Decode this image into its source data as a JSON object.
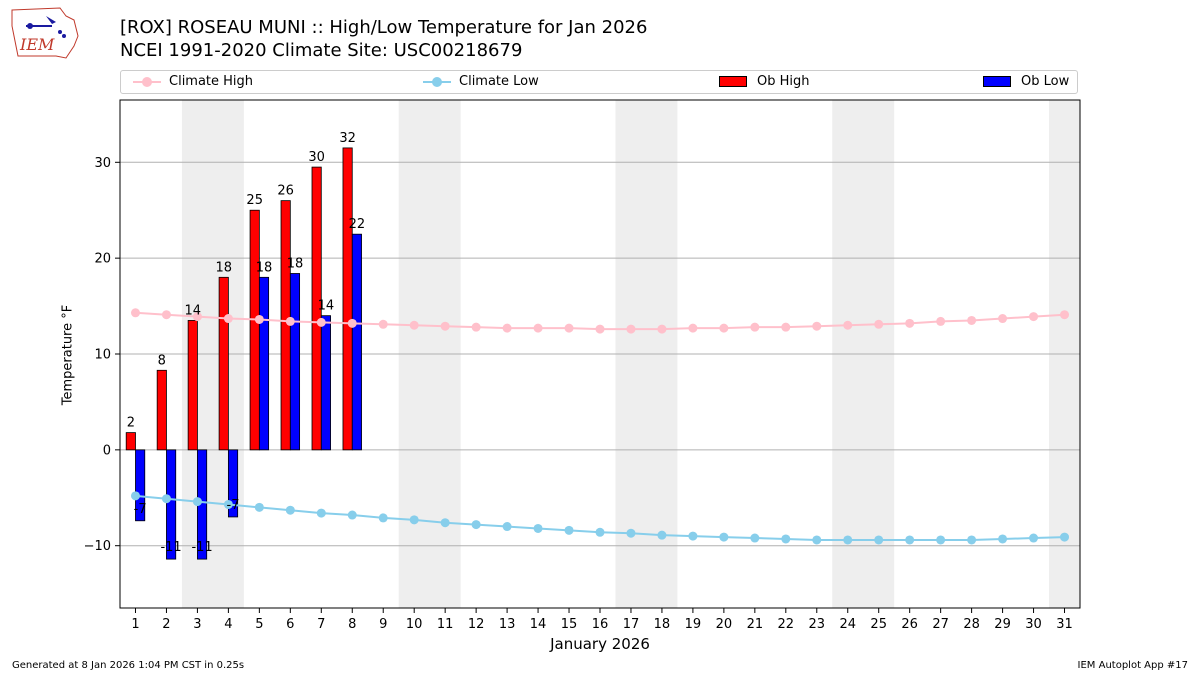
{
  "header": {
    "title_line1": "[ROX] ROSEAU MUNI :: High/Low Temperature for Jan 2026",
    "title_line2": "NCEI 1991-2020 Climate Site: USC00218679",
    "logo_text": "IEM"
  },
  "footer": {
    "generated": "Generated at 8 Jan 2026 1:04 PM CST in 0.25s",
    "app": "IEM Autoplot App #17"
  },
  "colors": {
    "climate_high": "#ffc0cb",
    "climate_low": "#87ceeb",
    "ob_high": "#ff0000",
    "ob_low": "#0000ff",
    "weekend_shade": "#eeeeee",
    "grid": "#b0b0b0"
  },
  "chart_data": {
    "type": "bar",
    "title": "[ROX] ROSEAU MUNI :: High/Low Temperature for Jan 2026",
    "xlabel": "January 2026",
    "ylabel": "Temperature °F",
    "xlim": [
      0.5,
      31.5
    ],
    "ylim": [
      -16.5,
      36.5
    ],
    "yticks": [
      -10,
      0,
      10,
      20,
      30
    ],
    "days": [
      1,
      2,
      3,
      4,
      5,
      6,
      7,
      8,
      9,
      10,
      11,
      12,
      13,
      14,
      15,
      16,
      17,
      18,
      19,
      20,
      21,
      22,
      23,
      24,
      25,
      26,
      27,
      28,
      29,
      30,
      31
    ],
    "weekend_spans": [
      [
        2.5,
        4.5
      ],
      [
        9.5,
        11.5
      ],
      [
        16.5,
        18.5
      ],
      [
        23.5,
        25.5
      ],
      [
        30.5,
        31.5
      ]
    ],
    "legend": [
      "Climate High",
      "Climate Low",
      "Ob High",
      "Ob Low"
    ],
    "series": [
      {
        "name": "Climate High",
        "kind": "line",
        "values": [
          14.3,
          14.1,
          13.9,
          13.7,
          13.6,
          13.4,
          13.3,
          13.2,
          13.1,
          13.0,
          12.9,
          12.8,
          12.7,
          12.7,
          12.7,
          12.6,
          12.6,
          12.6,
          12.7,
          12.7,
          12.8,
          12.8,
          12.9,
          13.0,
          13.1,
          13.2,
          13.4,
          13.5,
          13.7,
          13.9,
          14.1
        ]
      },
      {
        "name": "Climate Low",
        "kind": "line",
        "values": [
          -4.8,
          -5.1,
          -5.4,
          -5.7,
          -6.0,
          -6.3,
          -6.6,
          -6.8,
          -7.1,
          -7.3,
          -7.6,
          -7.8,
          -8.0,
          -8.2,
          -8.4,
          -8.6,
          -8.7,
          -8.9,
          -9.0,
          -9.1,
          -9.2,
          -9.3,
          -9.4,
          -9.4,
          -9.4,
          -9.4,
          -9.4,
          -9.4,
          -9.3,
          -9.2,
          -9.1
        ]
      },
      {
        "name": "Ob High",
        "kind": "bar",
        "values": [
          1.8,
          8.3,
          13.5,
          18.0,
          25.0,
          26.0,
          29.5,
          31.5
        ],
        "labels": [
          "2",
          "8",
          "14",
          "18",
          "25",
          "26",
          "30",
          "32"
        ]
      },
      {
        "name": "Ob Low",
        "kind": "bar",
        "values": [
          -7.4,
          -11.4,
          -11.4,
          -7.0,
          18.0,
          18.4,
          14.0,
          22.5
        ],
        "labels": [
          "-7",
          "-11",
          "-11",
          "-7",
          "18",
          "18",
          "14",
          "22"
        ]
      }
    ]
  }
}
